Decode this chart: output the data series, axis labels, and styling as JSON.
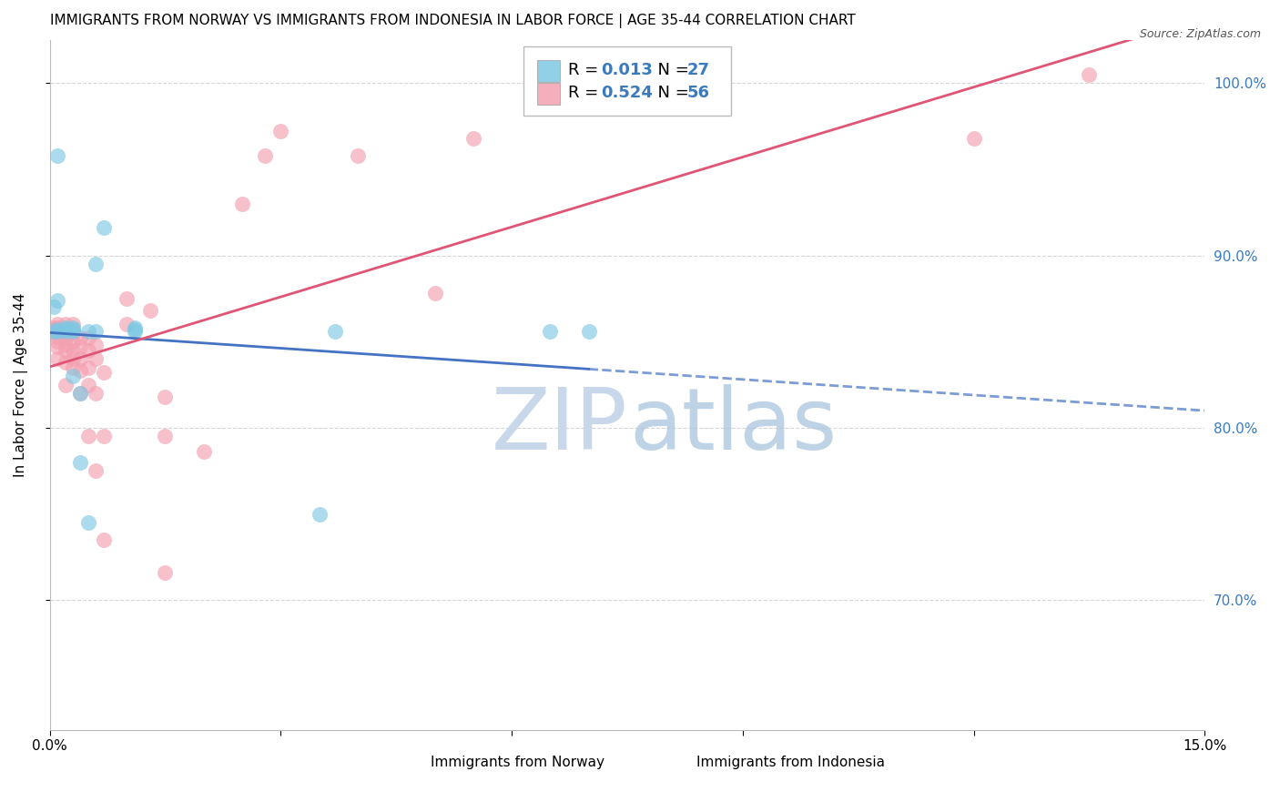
{
  "title": "IMMIGRANTS FROM NORWAY VS IMMIGRANTS FROM INDONESIA IN LABOR FORCE | AGE 35-44 CORRELATION CHART",
  "source": "Source: ZipAtlas.com",
  "ylabel": "In Labor Force | Age 35-44",
  "xlim": [
    0.0,
    0.15
  ],
  "ylim": [
    0.625,
    1.025
  ],
  "norway_color": "#7ec8e3",
  "indonesia_color": "#f4a0b0",
  "norway_R": 0.013,
  "norway_N": 27,
  "indonesia_R": 0.524,
  "indonesia_N": 56,
  "norway_x": [
    0.0005,
    0.0005,
    0.001,
    0.001,
    0.001,
    0.001,
    0.002,
    0.002,
    0.002,
    0.003,
    0.003,
    0.003,
    0.003,
    0.004,
    0.004,
    0.005,
    0.005,
    0.006,
    0.006,
    0.007,
    0.011,
    0.011,
    0.011,
    0.035,
    0.037,
    0.065,
    0.07
  ],
  "norway_y": [
    0.87,
    0.856,
    0.874,
    0.958,
    0.856,
    0.857,
    0.856,
    0.857,
    0.858,
    0.83,
    0.856,
    0.857,
    0.858,
    0.78,
    0.82,
    0.856,
    0.745,
    0.856,
    0.895,
    0.916,
    0.856,
    0.857,
    0.858,
    0.75,
    0.856,
    0.856,
    0.856
  ],
  "indonesia_x": [
    0.0005,
    0.0005,
    0.0005,
    0.001,
    0.001,
    0.001,
    0.001,
    0.001,
    0.001,
    0.001,
    0.001,
    0.002,
    0.002,
    0.002,
    0.002,
    0.002,
    0.002,
    0.002,
    0.003,
    0.003,
    0.003,
    0.003,
    0.003,
    0.003,
    0.004,
    0.004,
    0.004,
    0.004,
    0.004,
    0.005,
    0.005,
    0.005,
    0.005,
    0.005,
    0.006,
    0.006,
    0.006,
    0.006,
    0.007,
    0.007,
    0.007,
    0.01,
    0.01,
    0.013,
    0.015,
    0.015,
    0.015,
    0.02,
    0.025,
    0.028,
    0.03,
    0.04,
    0.05,
    0.055,
    0.12,
    0.135
  ],
  "indonesia_y": [
    0.856,
    0.857,
    0.858,
    0.84,
    0.847,
    0.85,
    0.853,
    0.856,
    0.857,
    0.858,
    0.86,
    0.825,
    0.838,
    0.845,
    0.848,
    0.852,
    0.855,
    0.86,
    0.835,
    0.84,
    0.845,
    0.85,
    0.855,
    0.86,
    0.82,
    0.833,
    0.84,
    0.847,
    0.852,
    0.795,
    0.825,
    0.835,
    0.845,
    0.852,
    0.775,
    0.82,
    0.84,
    0.848,
    0.735,
    0.795,
    0.832,
    0.86,
    0.875,
    0.868,
    0.716,
    0.795,
    0.818,
    0.786,
    0.93,
    0.958,
    0.972,
    0.958,
    0.878,
    0.968,
    0.968,
    1.005
  ],
  "background_color": "#ffffff",
  "grid_color": "#cccccc",
  "title_fontsize": 11,
  "axis_label_color": "#3a7abf",
  "norway_line_color": "#4472c4",
  "indonesia_line_color": "#e05575",
  "watermark_zip_color": "#c8d8ea",
  "watermark_atlas_color": "#b0c8e0"
}
